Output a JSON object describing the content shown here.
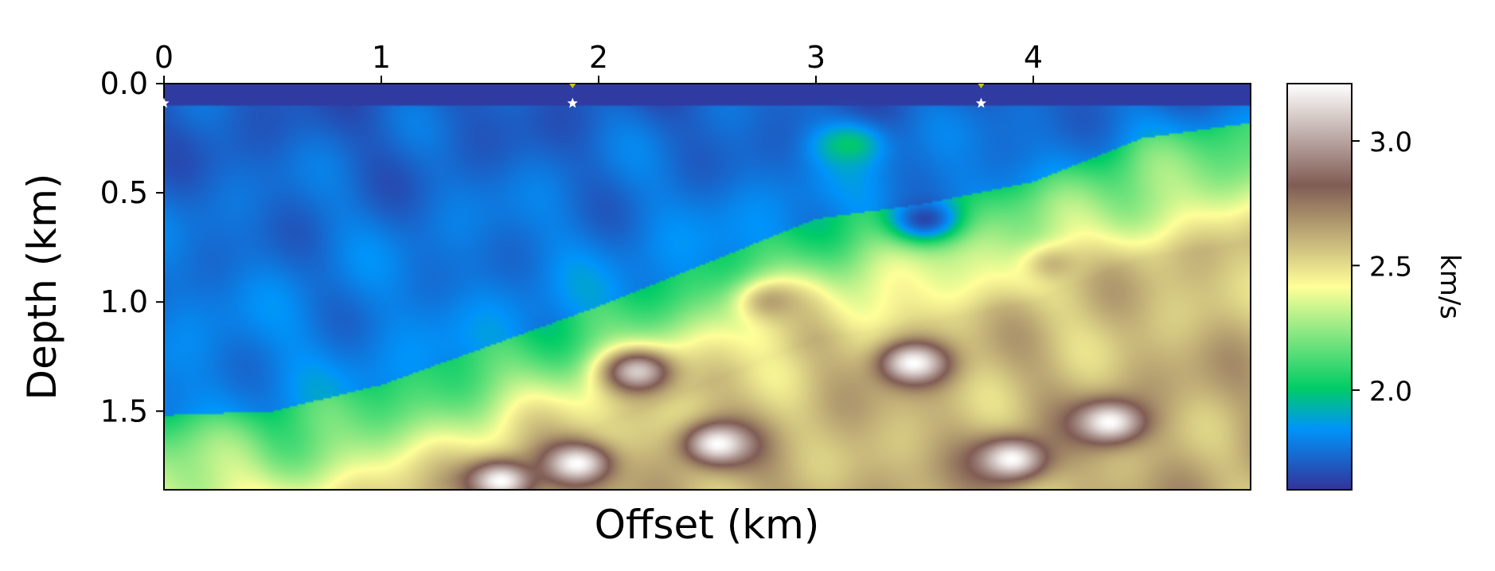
{
  "chart_data": {
    "type": "heatmap",
    "title": "",
    "xlabel": "Offset (km)",
    "ylabel": "Depth (km)",
    "x_axis_position": "top",
    "y_axis_inverted": true,
    "xlim": [
      0,
      5.0
    ],
    "ylim": [
      0,
      1.86
    ],
    "x_ticks": [
      0,
      1,
      2,
      3,
      4
    ],
    "x_tick_labels": [
      "0",
      "1",
      "2",
      "3",
      "4"
    ],
    "y_ticks": [
      0.0,
      0.5,
      1.0,
      1.5
    ],
    "y_tick_labels": [
      "0.0",
      "0.5",
      "1.0",
      "1.5"
    ],
    "grid": false,
    "colormap": "terrain",
    "colorbar": {
      "label": "km/s",
      "min": 1.6,
      "max": 3.23,
      "ticks": [
        2.0,
        2.5,
        3.0
      ],
      "tick_labels": [
        "2.0",
        "2.5",
        "3.0"
      ]
    },
    "source_markers": [
      {
        "x": 0.0,
        "y": 0.09
      },
      {
        "x": 1.88,
        "y": 0.09
      },
      {
        "x": 3.76,
        "y": 0.09
      }
    ],
    "receiver_markers": [
      {
        "x": 1.88,
        "y": 0.0
      },
      {
        "x": 3.76,
        "y": 0.0
      }
    ],
    "seafloor_depth_km": {
      "x": [
        0.0,
        0.5,
        1.0,
        1.5,
        2.0,
        2.5,
        3.0,
        3.5,
        4.0,
        4.5,
        5.0
      ],
      "depth": [
        1.52,
        1.5,
        1.38,
        1.2,
        1.02,
        0.82,
        0.62,
        0.55,
        0.45,
        0.25,
        0.18
      ]
    },
    "anomalies": [
      {
        "x": 2.18,
        "y": 1.32,
        "velocity": 3.1
      },
      {
        "x": 3.45,
        "y": 1.28,
        "velocity": 3.23
      },
      {
        "x": 2.55,
        "y": 1.65,
        "velocity": 3.23
      },
      {
        "x": 1.9,
        "y": 1.74,
        "velocity": 3.23
      },
      {
        "x": 1.55,
        "y": 1.82,
        "velocity": 3.23
      },
      {
        "x": 4.35,
        "y": 1.55,
        "velocity": 3.23
      },
      {
        "x": 3.9,
        "y": 1.72,
        "velocity": 3.23
      },
      {
        "x": 2.8,
        "y": 1.0,
        "velocity": 2.65
      },
      {
        "x": 4.1,
        "y": 0.83,
        "velocity": 2.6
      },
      {
        "x": 3.15,
        "y": 0.28,
        "velocity": 2.0
      },
      {
        "x": 3.5,
        "y": 0.62,
        "velocity": 1.65
      }
    ]
  }
}
